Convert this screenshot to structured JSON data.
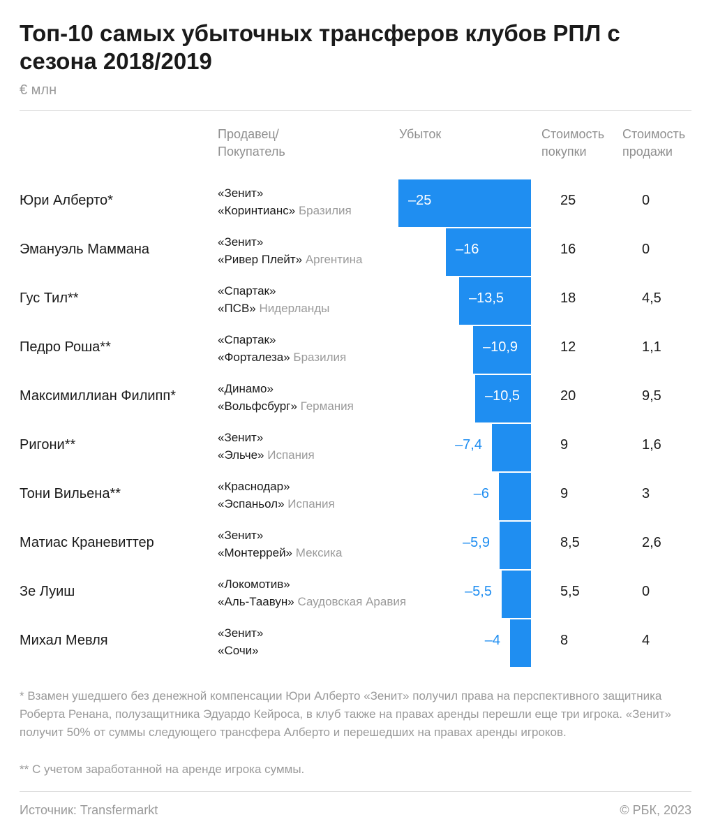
{
  "title": "Топ-10 самых убыточных трансферов клубов РПЛ с сезона 2018/2019",
  "unit": "€ млн",
  "headers": {
    "clubs_line1": "Продавец/",
    "clubs_line2": "Покупатель",
    "loss": "Убыток",
    "buy_line1": "Стоимость",
    "buy_line2": "покупки",
    "sell_line1": "Стоимость",
    "sell_line2": "продажи"
  },
  "colors": {
    "bar": "#1f8ef1",
    "text": "#1a1a1a",
    "muted": "#9a9a9a"
  },
  "chart_data": {
    "type": "bar",
    "orientation": "horizontal",
    "title": "Топ-10 самых убыточных трансферов клубов РПЛ с сезона 2018/2019",
    "ylabel": "€ млн",
    "xlim": [
      -25,
      0
    ],
    "categories": [
      "Юри Алберто*",
      "Эмануэль Маммана",
      "Гус Тил**",
      "Педро Роша**",
      "Максимиллиан Филипп*",
      "Ригони**",
      "Тони Вильена**",
      "Матиас Краневиттер",
      "Зе Луиш",
      "Михал Мевля"
    ],
    "values": [
      -25,
      -16,
      -13.5,
      -10.9,
      -10.5,
      -7.4,
      -6,
      -5.9,
      -5.5,
      -4
    ],
    "value_labels": [
      "–25",
      "–16",
      "–13,5",
      "–10,9",
      "–10,5",
      "–7,4",
      "–6",
      "–5,9",
      "–5,5",
      "–4"
    ]
  },
  "rows": [
    {
      "player": "Юри Алберто*",
      "seller": "«Зенит»",
      "buyer": "«Коринтианс»",
      "country": "Бразилия",
      "loss": -25,
      "loss_label": "–25",
      "buy": "25",
      "sell": "0"
    },
    {
      "player": "Эмануэль Маммана",
      "seller": "«Зенит»",
      "buyer": "«Ривер Плейт»",
      "country": "Аргентина",
      "loss": -16,
      "loss_label": "–16",
      "buy": "16",
      "sell": "0"
    },
    {
      "player": "Гус Тил**",
      "seller": "«Спартак»",
      "buyer": "«ПСВ»",
      "country": "Нидерланды",
      "loss": -13.5,
      "loss_label": "–13,5",
      "buy": "18",
      "sell": "4,5"
    },
    {
      "player": "Педро Роша**",
      "seller": "«Спартак»",
      "buyer": "«Форталеза»",
      "country": "Бразилия",
      "loss": -10.9,
      "loss_label": "–10,9",
      "buy": "12",
      "sell": "1,1"
    },
    {
      "player": "Максимиллиан Филипп*",
      "seller": "«Динамо»",
      "buyer": "«Вольфсбург»",
      "country": "Германия",
      "loss": -10.5,
      "loss_label": "–10,5",
      "buy": "20",
      "sell": "9,5"
    },
    {
      "player": "Ригони**",
      "seller": "«Зенит»",
      "buyer": "«Эльче»",
      "country": "Испания",
      "loss": -7.4,
      "loss_label": "–7,4",
      "buy": "9",
      "sell": "1,6"
    },
    {
      "player": "Тони Вильена**",
      "seller": "«Краснодар»",
      "buyer": "«Эспаньол»",
      "country": "Испания",
      "loss": -6,
      "loss_label": "–6",
      "buy": "9",
      "sell": "3"
    },
    {
      "player": "Матиас Краневиттер",
      "seller": "«Зенит»",
      "buyer": "«Монтеррей»",
      "country": "Мексика",
      "loss": -5.9,
      "loss_label": "–5,9",
      "buy": "8,5",
      "sell": "2,6"
    },
    {
      "player": "Зе Луиш",
      "seller": "«Локомотив»",
      "buyer": "«Аль-Таавун»",
      "country": "Саудовская Аравия",
      "loss": -5.5,
      "loss_label": "–5,5",
      "buy": "5,5",
      "sell": "0"
    },
    {
      "player": "Михал Мевля",
      "seller": "«Зенит»",
      "buyer": "«Сочи»",
      "country": "",
      "loss": -4,
      "loss_label": "–4",
      "buy": "8",
      "sell": "4"
    }
  ],
  "notes": {
    "note1": "* Взамен ушедшего без денежной компенсации Юри Алберто «Зенит» получил права на перспективного защитника Роберта Ренана, полузащитника Эдуардо Кейроса, в клуб также на правах аренды перешли еще три игрока. «Зенит» получит 50% от суммы следующего трансфера Алберто и перешедших на правах аренды игроков.",
    "note2": "** С учетом заработанной на аренде игрока суммы."
  },
  "footer": {
    "source": "Источник: Transfermarkt",
    "copyright": "© РБК, 2023"
  }
}
